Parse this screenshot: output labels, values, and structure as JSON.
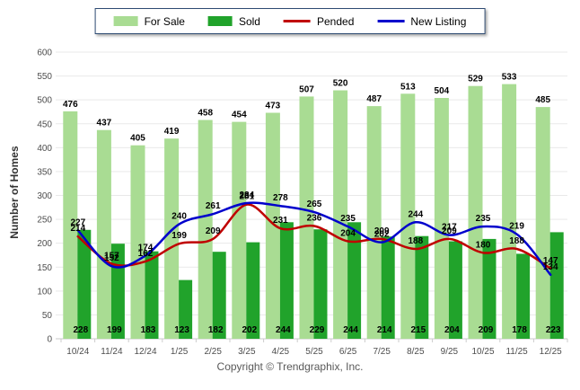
{
  "legend": {
    "note": "top legend"
  },
  "footer": {
    "copyright": "Copyright © Trendgraphix, Inc."
  },
  "chart_data": {
    "type": "combo-bar-line",
    "categories": [
      "10/24",
      "11/24",
      "12/24",
      "1/25",
      "2/25",
      "3/25",
      "4/25",
      "5/25",
      "6/25",
      "7/25",
      "8/25",
      "9/25",
      "10/25",
      "11/25",
      "12/25"
    ],
    "series": [
      {
        "name": "For Sale",
        "type": "bar",
        "color": "#A9DC93",
        "values": [
          476,
          437,
          405,
          419,
          458,
          454,
          473,
          507,
          520,
          487,
          513,
          504,
          529,
          533,
          485
        ]
      },
      {
        "name": "Sold",
        "type": "bar",
        "color": "#21A32B",
        "values": [
          228,
          199,
          183,
          123,
          182,
          202,
          244,
          229,
          244,
          214,
          215,
          204,
          209,
          178,
          223
        ]
      },
      {
        "name": "Pended",
        "type": "line",
        "color": "#C00000",
        "values": [
          214,
          157,
          162,
          199,
          209,
          281,
          231,
          236,
          204,
          209,
          188,
          209,
          180,
          188,
          147
        ]
      },
      {
        "name": "New Listing",
        "type": "line",
        "color": "#0000CC",
        "values": [
          227,
          152,
          174,
          240,
          261,
          284,
          278,
          265,
          235,
          202,
          244,
          217,
          235,
          219,
          134
        ]
      }
    ],
    "title": "",
    "xlabel": "",
    "ylabel": "Number of Homes",
    "ylim": [
      0,
      600
    ],
    "ytick": 50,
    "grid": true,
    "legend_position": "top",
    "label_color": "#000000",
    "tick_color": "#4d4d4d"
  }
}
